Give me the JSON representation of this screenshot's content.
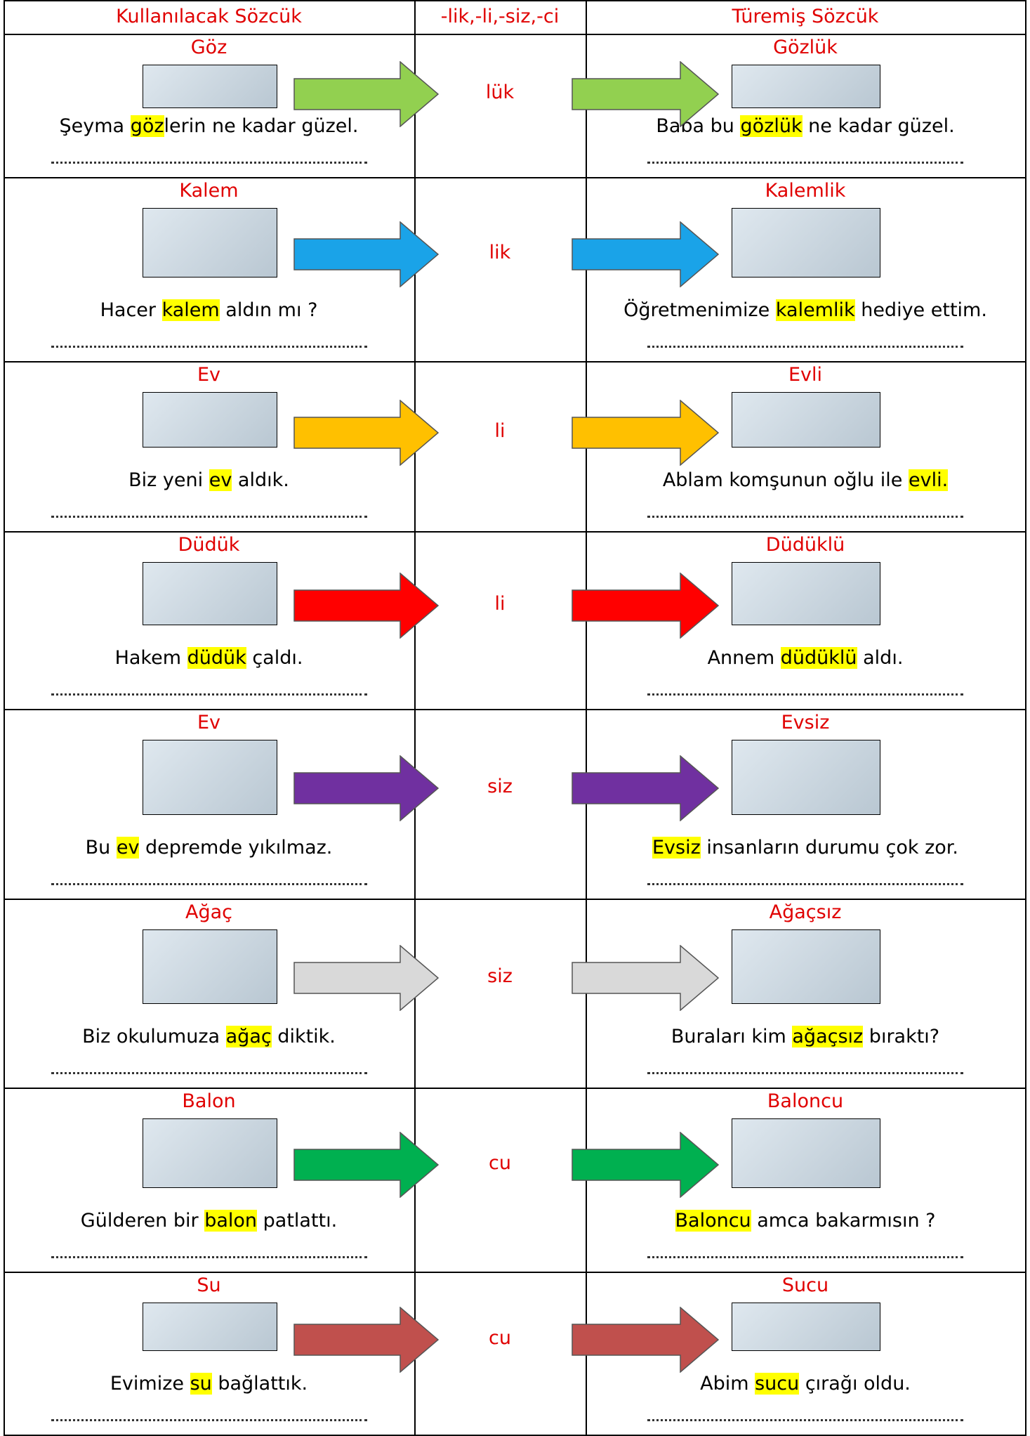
{
  "header": {
    "columns": [
      "Kullanılacak Sözcük",
      "-lik,-li,-siz,-ci",
      "Türemiş Sözcük"
    ]
  },
  "rows": [
    {
      "base": {
        "word": "Göz",
        "sentence": {
          "pre": "Şeyma ",
          "highlight": "göz",
          "post": "lerin ne kadar güzel."
        }
      },
      "suffix": "lük",
      "arrow_color": "#92d050",
      "derived": {
        "word": "Gözlük",
        "sentence": {
          "pre": "Baba bu ",
          "highlight": "gözlük",
          "post": " ne kadar güzel."
        }
      }
    },
    {
      "base": {
        "word": "Kalem",
        "sentence": {
          "pre": "Hacer ",
          "highlight": "kalem",
          "post": " aldın mı ?"
        }
      },
      "suffix": "lik",
      "arrow_color": "#1aa3e8",
      "derived": {
        "word": "Kalemlik",
        "sentence": {
          "pre": "Öğretmenimize ",
          "highlight": "kalemlik",
          "post": " hediye ettim."
        }
      }
    },
    {
      "base": {
        "word": "Ev",
        "sentence": {
          "pre": "Biz yeni ",
          "highlight": "ev",
          "post": " aldık."
        }
      },
      "suffix": "li",
      "arrow_color": "#ffc000",
      "derived": {
        "word": "Evli",
        "sentence": {
          "pre": "Ablam komşunun oğlu ile ",
          "highlight": "evli."
        }
      }
    },
    {
      "base": {
        "word": "Düdük",
        "sentence": {
          "pre": "Hakem ",
          "highlight": "düdük",
          "post": " çaldı."
        }
      },
      "suffix": "li",
      "arrow_color": "#ff0000",
      "derived": {
        "word": "Düdüklü",
        "sentence": {
          "pre": "Annem ",
          "highlight": "düdüklü",
          "post": " aldı."
        }
      }
    },
    {
      "base": {
        "word": "Ev",
        "sentence": {
          "pre": "Bu ",
          "highlight": "ev",
          "post": " depremde yıkılmaz."
        }
      },
      "suffix": "siz",
      "arrow_color": "#7030a0",
      "derived": {
        "word": "Evsiz",
        "sentence": {
          "highlight": "Evsiz",
          "post": " insanların durumu çok zor."
        }
      }
    },
    {
      "base": {
        "word": "Ağaç",
        "sentence": {
          "pre": "Biz okulumuza ",
          "highlight": "ağaç",
          "post": " diktik."
        }
      },
      "suffix": "siz",
      "arrow_color": "#d9d9d9",
      "derived": {
        "word": "Ağaçsız",
        "sentence": {
          "pre": "Buraları kim ",
          "highlight": "ağaçsız",
          "post": " bıraktı?"
        }
      }
    },
    {
      "base": {
        "word": "Balon",
        "sentence": {
          "pre": "Gülderen bir ",
          "highlight": "balon",
          "post": " patlattı."
        }
      },
      "suffix": "cu",
      "arrow_color": "#00b050",
      "derived": {
        "word": "Baloncu",
        "sentence": {
          "highlight": "Baloncu",
          "post": " amca bakarmısın ?"
        }
      }
    },
    {
      "base": {
        "word": "Su",
        "sentence": {
          "pre": "Evimize ",
          "highlight": "su",
          "post": " bağlattık."
        }
      },
      "suffix": "cu",
      "arrow_color": "#c0504d",
      "derived": {
        "word": "Sucu",
        "sentence": {
          "pre": "Abim ",
          "highlight": "sucu",
          "post": " çırağı oldu."
        }
      }
    }
  ]
}
